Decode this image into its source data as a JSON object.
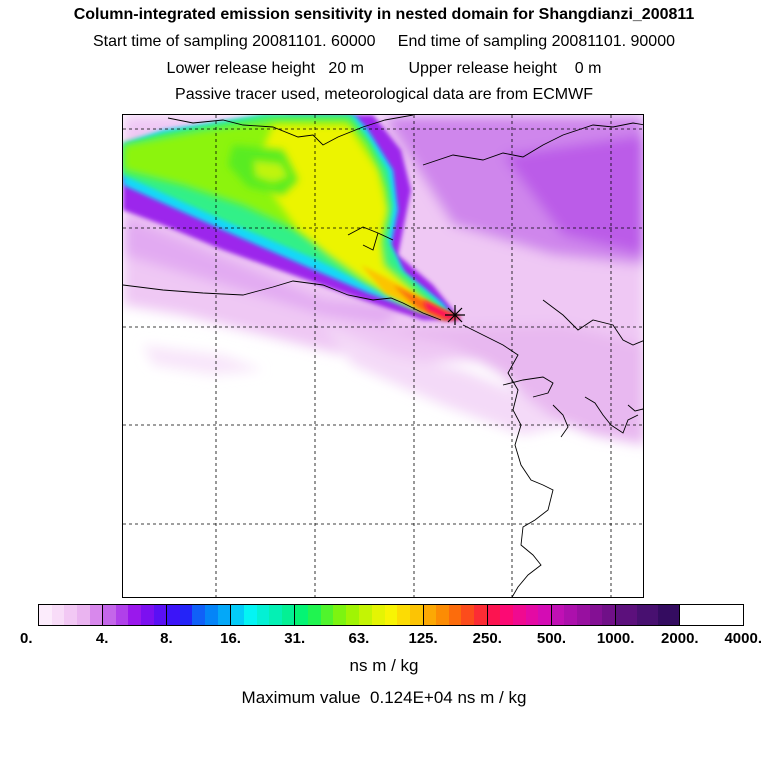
{
  "header": {
    "title": "Column-integrated emission sensitivity in nested domain for Shangdianzi_200811",
    "sampling_line": "Start time of sampling 20081101. 60000     End time of sampling 20081101. 90000",
    "release_line": "Lower release height   20 m          Upper release height    0 m",
    "tracer_line": "Passive tracer used, meteorological data are from ECMWF"
  },
  "map": {
    "station_marker": "receptor-star-icon"
  },
  "colorbar": {
    "tick_labels": [
      "0.",
      "4.",
      "8.",
      "16.",
      "31.",
      "63.",
      "125.",
      "250.",
      "500.",
      "1000.",
      "2000.",
      "4000."
    ],
    "colors": [
      "#fcecfc",
      "#f8dcf8",
      "#f2c8f4",
      "#eab4f0",
      "#d888ec",
      "#c466ea",
      "#b040ea",
      "#9a18ec",
      "#7c10f0",
      "#5a10f4",
      "#3c14f8",
      "#2424f8",
      "#1060f8",
      "#0484f8",
      "#04a8f8",
      "#04ccf8",
      "#04f4f4",
      "#04f0d4",
      "#04f0b4",
      "#04f094",
      "#04f474",
      "#20f450",
      "#50f42c",
      "#7cf410",
      "#a0f404",
      "#c4f404",
      "#e4f404",
      "#f8f404",
      "#fcdc04",
      "#fcc404",
      "#fca804",
      "#fc8c04",
      "#fc6c0c",
      "#fc4c1c",
      "#fc2c34",
      "#fc1450",
      "#fc0a74",
      "#f00a90",
      "#e40aa4",
      "#d40cb4",
      "#c010b4",
      "#ac10ac",
      "#9810a0",
      "#841094",
      "#701088",
      "#5c107c",
      "#481070",
      "#340c60"
    ],
    "unit": "ns m / kg",
    "max_value_text": "Maximum value  0.124E+04 ns m / kg"
  }
}
